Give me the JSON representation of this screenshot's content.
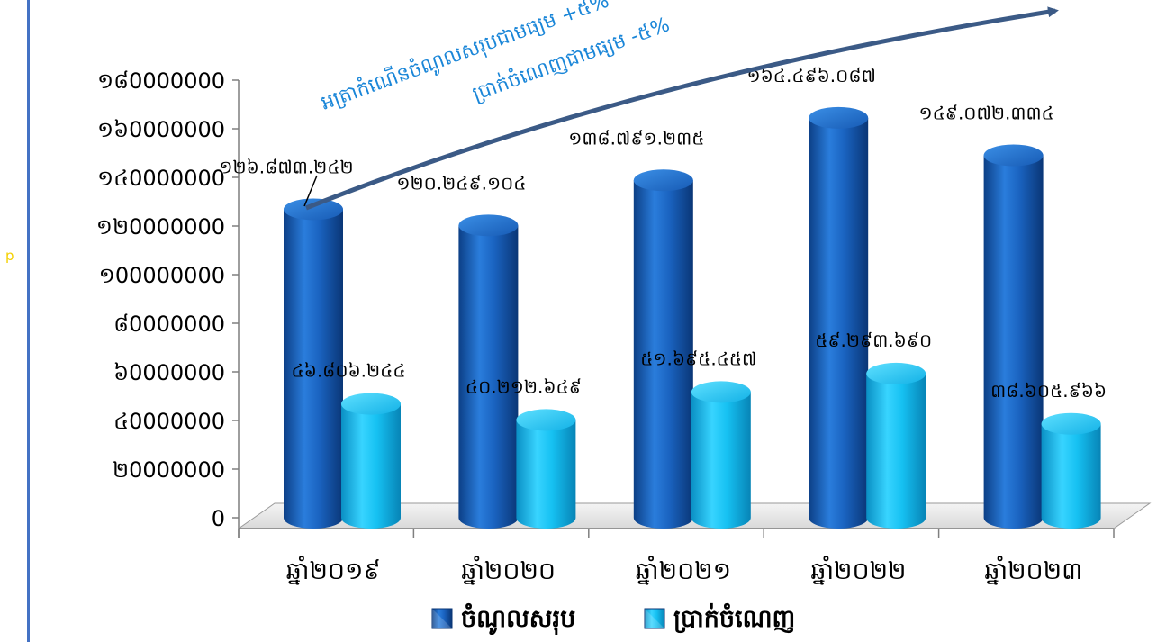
{
  "chart_data": {
    "type": "bar",
    "categories": [
      "ឆ្នាំ២០១៩",
      "ឆ្នាំ២០២០",
      "ឆ្នាំ២០២១",
      "ឆ្នាំ២០២២",
      "ឆ្នាំ២០២៣"
    ],
    "series": [
      {
        "name": "ចំណូលសរុប",
        "values": [
          126873242,
          120249104,
          138791235,
          164496087,
          149072334
        ],
        "data_labels": [
          "១២៦.៨៧៣.២៤២",
          "១២០.២៤៩.១០៤",
          "១៣៨.៧៩១.២៣៥",
          "១៦៤.៤៩៦.០៨៧",
          "១៤៩.០៧២.៣៣៤"
        ],
        "color": "#1a63c0"
      },
      {
        "name": "ប្រាក់ចំណេញ",
        "values": [
          46806244,
          40212649,
          51695457,
          59293690,
          38605966
        ],
        "data_labels": [
          "៤៦.៨០៦.២៤៤",
          "៤០.២១២.៦៤៩",
          "៥១.៦៩៥.៤៥៧",
          "៥៩.២៩៣.៦៩០",
          "៣៨.៦០៥.៩៦៦"
        ],
        "color": "#16c1f2"
      }
    ],
    "ylim": [
      0,
      180000000
    ],
    "yticks": [
      "0",
      "២0000000",
      "៤0000000",
      "៦0000000",
      "៨0000000",
      "១00000000",
      "១២0000000",
      "១៤0000000",
      "១៦0000000",
      "១៨0000000"
    ],
    "title": "",
    "xlabel": "",
    "ylabel": "",
    "legend_position": "bottom",
    "annotations": [
      "អត្រាកំណើនចំណូលសរុបជាមធ្យម +៥% ",
      "ប្រាក់ចំណេញជាមធ្យម -៥%"
    ],
    "stray_text": "p"
  }
}
